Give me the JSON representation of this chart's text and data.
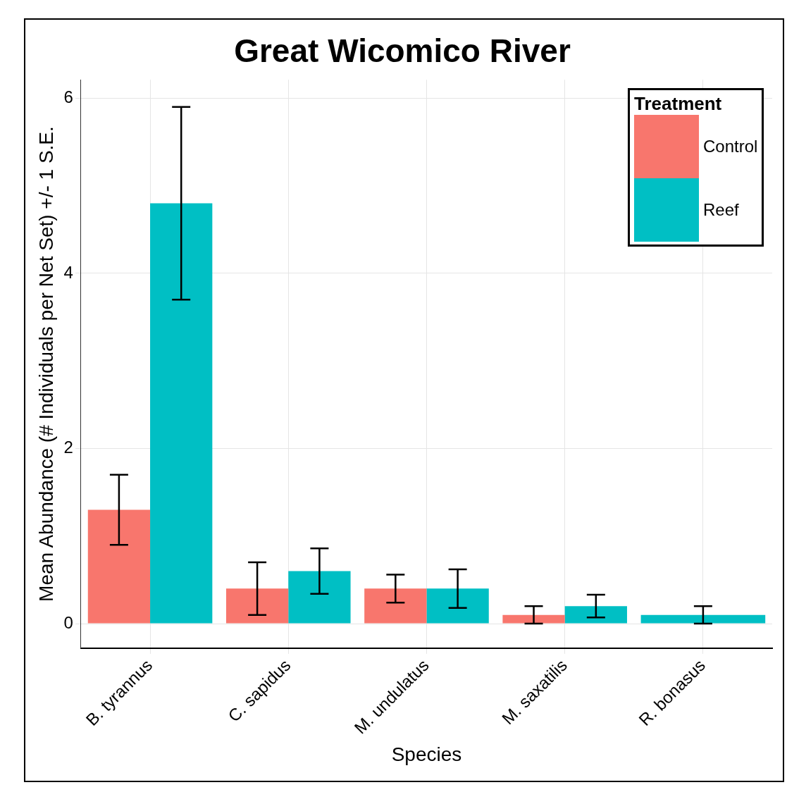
{
  "chart_data": {
    "type": "bar",
    "title": "Great Wicomico River",
    "xlabel": "Species",
    "ylabel": "Mean Abundance (# Individuals per Net Set) +/- 1 S.E.",
    "legend_title": "Treatment",
    "categories": [
      "B. tyrannus",
      "C. sapidus",
      "M. undulatus",
      "M. saxatilis",
      "R. bonasus"
    ],
    "series": [
      {
        "name": "Control",
        "color": "#f8766d",
        "values": [
          1.3,
          0.4,
          0.4,
          0.1,
          null
        ],
        "errors": [
          0.4,
          0.3,
          0.16,
          0.1,
          null
        ]
      },
      {
        "name": "Reef",
        "color": "#00bfc4",
        "values": [
          4.8,
          0.6,
          0.4,
          0.2,
          0.1
        ],
        "errors": [
          1.1,
          0.26,
          0.22,
          0.13,
          0.1
        ]
      }
    ],
    "ylim": [
      -0.28,
      6.21
    ],
    "yticks": [
      0,
      2,
      4,
      6
    ],
    "grid": true,
    "legend": "top right"
  }
}
